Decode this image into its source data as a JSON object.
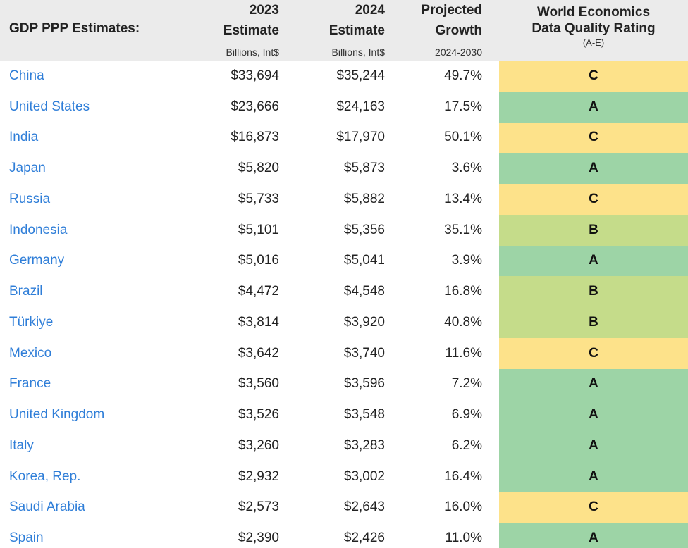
{
  "header": {
    "title": "GDP PPP Estimates:",
    "col2023_line1": "2023",
    "col2023_line2": "Estimate",
    "col2023_unit": "Billions, Int$",
    "col2024_line1": "2024",
    "col2024_line2": "Estimate",
    "col2024_unit": "Billions, Int$",
    "growth_line1": "Projected",
    "growth_line2": "Growth",
    "growth_unit": "2024-2030",
    "rating_line1": "World Economics",
    "rating_line2": "Data Quality Rating",
    "rating_sub": "(A-E)"
  },
  "rating_colors": {
    "A": "#9dd4a6",
    "B": "#c5dc8a",
    "C": "#fde28a"
  },
  "rows": [
    {
      "country": "China",
      "est2023": "$33,694",
      "est2024": "$35,244",
      "growth": "49.7%",
      "rating": "C"
    },
    {
      "country": "United States",
      "est2023": "$23,666",
      "est2024": "$24,163",
      "growth": "17.5%",
      "rating": "A"
    },
    {
      "country": "India",
      "est2023": "$16,873",
      "est2024": "$17,970",
      "growth": "50.1%",
      "rating": "C"
    },
    {
      "country": "Japan",
      "est2023": "$5,820",
      "est2024": "$5,873",
      "growth": "3.6%",
      "rating": "A"
    },
    {
      "country": "Russia",
      "est2023": "$5,733",
      "est2024": "$5,882",
      "growth": "13.4%",
      "rating": "C"
    },
    {
      "country": "Indonesia",
      "est2023": "$5,101",
      "est2024": "$5,356",
      "growth": "35.1%",
      "rating": "B"
    },
    {
      "country": "Germany",
      "est2023": "$5,016",
      "est2024": "$5,041",
      "growth": "3.9%",
      "rating": "A"
    },
    {
      "country": "Brazil",
      "est2023": "$4,472",
      "est2024": "$4,548",
      "growth": "16.8%",
      "rating": "B"
    },
    {
      "country": "Türkiye",
      "est2023": "$3,814",
      "est2024": "$3,920",
      "growth": "40.8%",
      "rating": "B"
    },
    {
      "country": "Mexico",
      "est2023": "$3,642",
      "est2024": "$3,740",
      "growth": "11.6%",
      "rating": "C"
    },
    {
      "country": "France",
      "est2023": "$3,560",
      "est2024": "$3,596",
      "growth": "7.2%",
      "rating": "A"
    },
    {
      "country": "United Kingdom",
      "est2023": "$3,526",
      "est2024": "$3,548",
      "growth": "6.9%",
      "rating": "A"
    },
    {
      "country": "Italy",
      "est2023": "$3,260",
      "est2024": "$3,283",
      "growth": "6.2%",
      "rating": "A"
    },
    {
      "country": "Korea, Rep.",
      "est2023": "$2,932",
      "est2024": "$3,002",
      "growth": "16.4%",
      "rating": "A"
    },
    {
      "country": "Saudi Arabia",
      "est2023": "$2,573",
      "est2024": "$2,643",
      "growth": "16.0%",
      "rating": "C"
    },
    {
      "country": "Spain",
      "est2023": "$2,390",
      "est2024": "$2,426",
      "growth": "11.0%",
      "rating": "A"
    }
  ]
}
